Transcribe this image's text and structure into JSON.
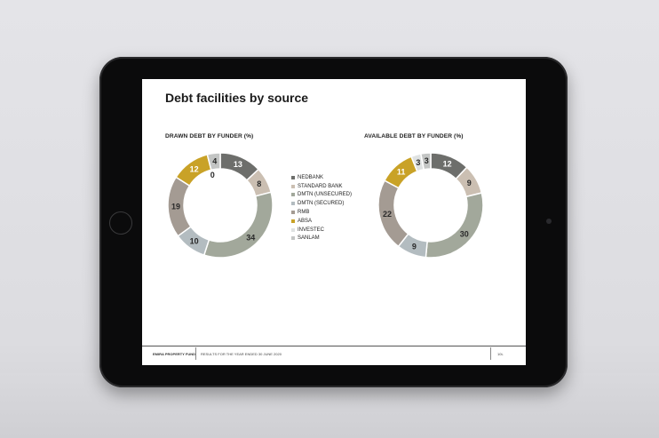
{
  "page": {
    "title": "Debt facilities by source",
    "footer": {
      "company": "EMIRA PROPERTY FUND",
      "report": "RESULTS FOR THE YEAR ENDED 30 JUNE 2020",
      "page_number": "10L"
    }
  },
  "colors": {
    "NEDBANK": "#6d6e6b",
    "STANDARD BANK": "#cbbfb2",
    "DMTN (UNSECURED)": "#a2a89b",
    "DMTN (SECURED)": "#b3bcc0",
    "RMB": "#a49b93",
    "ABSA": "#c9a227",
    "INVESTEC": "#dfe2e2",
    "SANLAM": "#c3c5c4"
  },
  "legend": [
    "NEDBANK",
    "STANDARD BANK",
    "DMTN (UNSECURED)",
    "DMTN (SECURED)",
    "RMB",
    "ABSA",
    "INVESTEC",
    "SANLAM"
  ],
  "chart_data": [
    {
      "type": "pie",
      "donut": true,
      "title": "DRAWN DEBT BY FUNDER (%)",
      "categories": [
        "NEDBANK",
        "STANDARD BANK",
        "DMTN (UNSECURED)",
        "DMTN (SECURED)",
        "RMB",
        "ABSA",
        "INVESTEC",
        "SANLAM"
      ],
      "values": [
        13,
        8,
        34,
        10,
        19,
        12,
        0,
        4
      ],
      "labels": [
        "13",
        "8",
        "34",
        "10",
        "19",
        "12",
        "0",
        "4"
      ],
      "legend_position": "right"
    },
    {
      "type": "pie",
      "donut": true,
      "title": "AVAILABLE DEBT BY FUNDER (%)",
      "categories": [
        "NEDBANK",
        "STANDARD BANK",
        "DMTN (UNSECURED)",
        "DMTN (SECURED)",
        "RMB",
        "ABSA",
        "INVESTEC",
        "SANLAM"
      ],
      "values": [
        12,
        9,
        30,
        9,
        22,
        11,
        3,
        3
      ],
      "labels": [
        "12",
        "9",
        "30",
        "9",
        "22",
        "11",
        "3",
        "3"
      ]
    }
  ]
}
